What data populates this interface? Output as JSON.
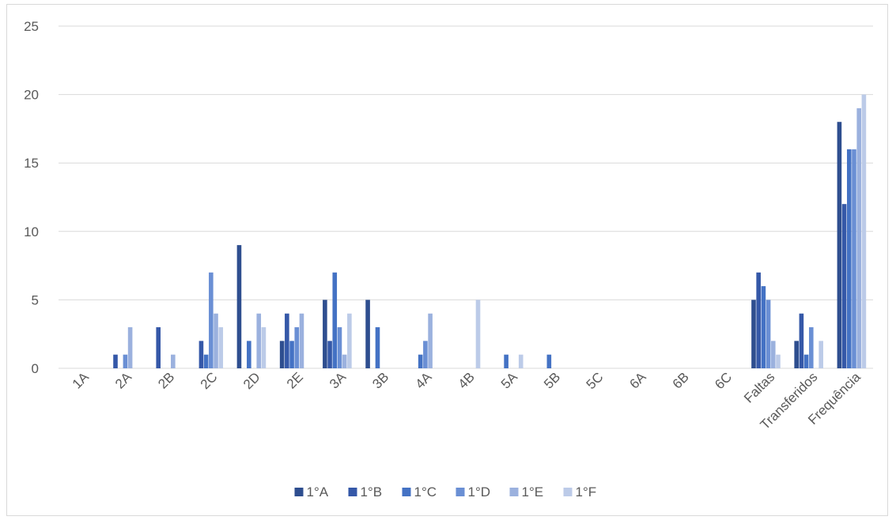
{
  "chart_data": {
    "type": "bar",
    "title": "",
    "xlabel": "",
    "ylabel": "",
    "ylim": [
      0,
      25
    ],
    "yticks": [
      0,
      5,
      10,
      15,
      20,
      25
    ],
    "grid": true,
    "legend_position": "bottom",
    "categories": [
      "1A",
      "2A",
      "2B",
      "2C",
      "2D",
      "2E",
      "3A",
      "3B",
      "4A",
      "4B",
      "5A",
      "5B",
      "5C",
      "6A",
      "6B",
      "6C",
      "Faltas",
      "Transferidos",
      "Frequência"
    ],
    "series": [
      {
        "name": "1°A",
        "color": "#2e4e8f",
        "values": [
          0,
          0,
          0,
          0,
          9,
          2,
          5,
          5,
          0,
          0,
          0,
          0,
          0,
          0,
          0,
          0,
          5,
          2,
          18
        ]
      },
      {
        "name": "1°B",
        "color": "#3558a8",
        "values": [
          0,
          1,
          3,
          2,
          0,
          4,
          2,
          0,
          0,
          0,
          0,
          0,
          0,
          0,
          0,
          0,
          7,
          4,
          12
        ]
      },
      {
        "name": "1°C",
        "color": "#4472c4",
        "values": [
          0,
          0,
          0,
          1,
          2,
          2,
          7,
          3,
          1,
          0,
          1,
          1,
          0,
          0,
          0,
          0,
          6,
          1,
          16
        ]
      },
      {
        "name": "1°D",
        "color": "#6a8fd4",
        "values": [
          0,
          1,
          0,
          7,
          0,
          3,
          3,
          0,
          2,
          0,
          0,
          0,
          0,
          0,
          0,
          0,
          5,
          3,
          16
        ]
      },
      {
        "name": "1°E",
        "color": "#9bb1de",
        "values": [
          0,
          3,
          1,
          4,
          4,
          4,
          1,
          0,
          4,
          0,
          0,
          0,
          0,
          0,
          0,
          0,
          2,
          0,
          19
        ]
      },
      {
        "name": "1°F",
        "color": "#bccbe8",
        "values": [
          0,
          0,
          0,
          3,
          3,
          0,
          4,
          0,
          0,
          5,
          1,
          0,
          0,
          0,
          0,
          0,
          1,
          2,
          20
        ]
      }
    ]
  }
}
